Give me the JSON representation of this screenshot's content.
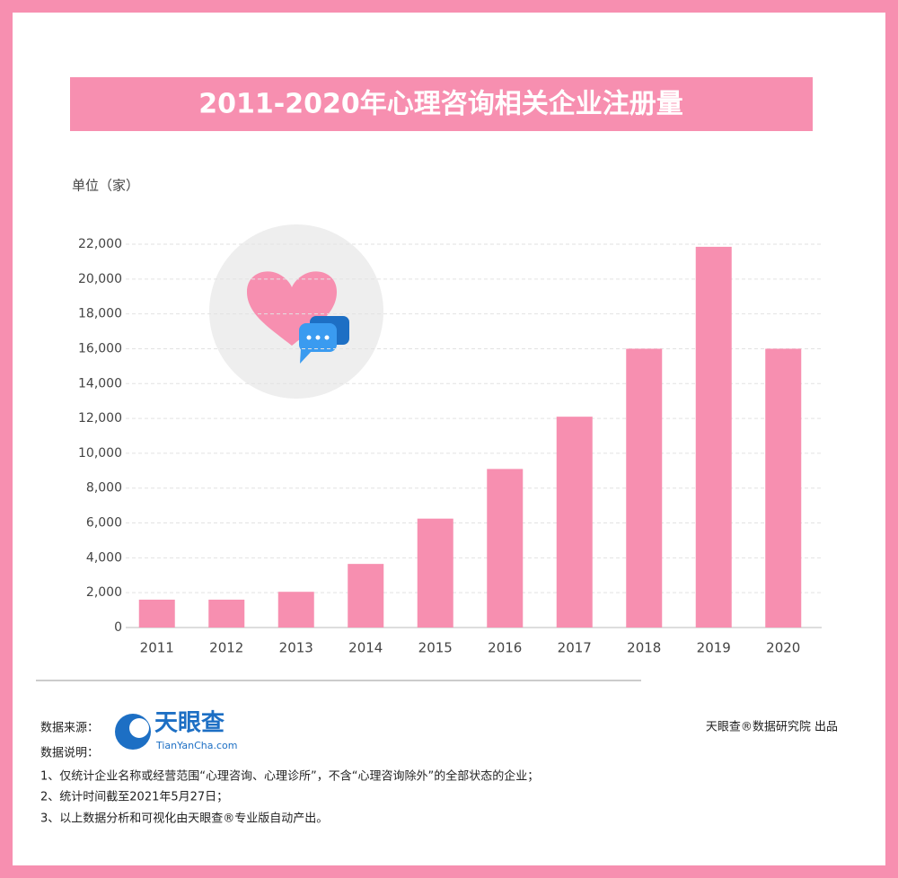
{
  "chart_data": {
    "type": "bar",
    "title": "2011-2020年心理咨询相关企业注册量",
    "unit": "单位（家）",
    "categories": [
      "2011",
      "2012",
      "2013",
      "2014",
      "2015",
      "2016",
      "2017",
      "2018",
      "2019",
      "2020"
    ],
    "values": [
      1600,
      1600,
      2050,
      3650,
      6250,
      9100,
      12100,
      16000,
      21850,
      16000
    ],
    "color": "#f78fb0",
    "ylim": [
      0,
      22000
    ],
    "yticks": [
      0,
      {
        "value": 2000,
        "label": "2,000"
      },
      {
        "value": 4000,
        "label": "4,000"
      },
      {
        "value": 6000,
        "label": "6,000"
      },
      {
        "value": 8000,
        "label": "8,000"
      },
      {
        "value": 10000,
        "label": "10,000"
      },
      {
        "value": 12000,
        "label": "12,000"
      },
      {
        "value": 14000,
        "label": "14,000"
      },
      {
        "value": 16000,
        "label": "16,000"
      },
      {
        "value": 18000,
        "label": "18,000"
      },
      {
        "value": 20000,
        "label": "20,000"
      },
      {
        "value": 22000,
        "label": "22,000"
      }
    ],
    "grid": true
  },
  "footer": {
    "source_label": "数据来源：",
    "logo_name": "天眼查",
    "logo_url": "TianYanCha.com",
    "producer": "天眼查®数据研究院 出品",
    "notes_label": "数据说明：",
    "notes": [
      "1、仅统计企业名称或经营范围“心理咨询、心理诊所”，不含“心理咨询除外”的全部状态的企业；",
      "2、统计时间截至2021年5月27日；",
      "3、以上数据分析和可视化由天眼查®专业版自动产出。"
    ]
  }
}
